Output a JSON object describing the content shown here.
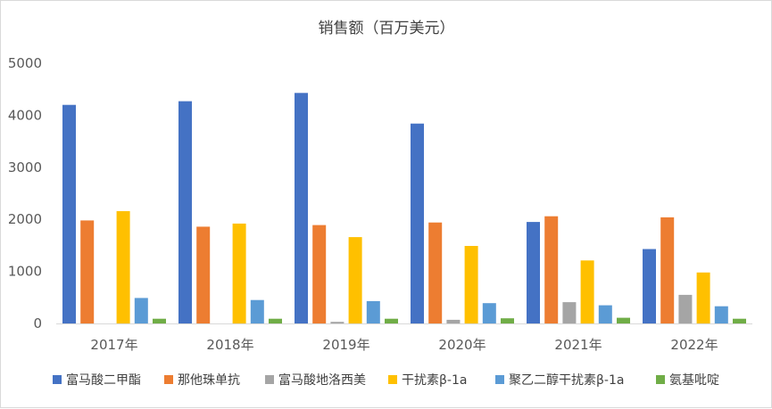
{
  "chart_data": {
    "type": "bar",
    "title": "销售额（百万美元）",
    "categories": [
      "2017年",
      "2018年",
      "2019年",
      "2020年",
      "2021年",
      "2022年"
    ],
    "series": [
      {
        "name": "富马酸二甲酯",
        "color": "#4472C4",
        "values": [
          4200,
          4270,
          4430,
          3840,
          1950,
          1430
        ]
      },
      {
        "name": "那他珠单抗",
        "color": "#ED7D31",
        "values": [
          1980,
          1860,
          1890,
          1940,
          2060,
          2040
        ]
      },
      {
        "name": "富马酸地洛西美",
        "color": "#A5A5A5",
        "values": [
          0,
          0,
          30,
          70,
          410,
          550
        ]
      },
      {
        "name": "干扰素β-1a",
        "color": "#FFC000",
        "values": [
          2160,
          1920,
          1660,
          1490,
          1210,
          980
        ]
      },
      {
        "name": "聚乙二醇干扰素β-1a",
        "color": "#5B9BD5",
        "values": [
          490,
          450,
          430,
          390,
          350,
          330
        ]
      },
      {
        "name": "氨基吡啶",
        "color": "#70AD47",
        "values": [
          90,
          90,
          90,
          100,
          110,
          90
        ]
      }
    ],
    "ylim": [
      0,
      5000
    ],
    "yticks": [
      0,
      1000,
      2000,
      3000,
      4000,
      5000
    ],
    "grid": false,
    "legend": "bottom"
  }
}
